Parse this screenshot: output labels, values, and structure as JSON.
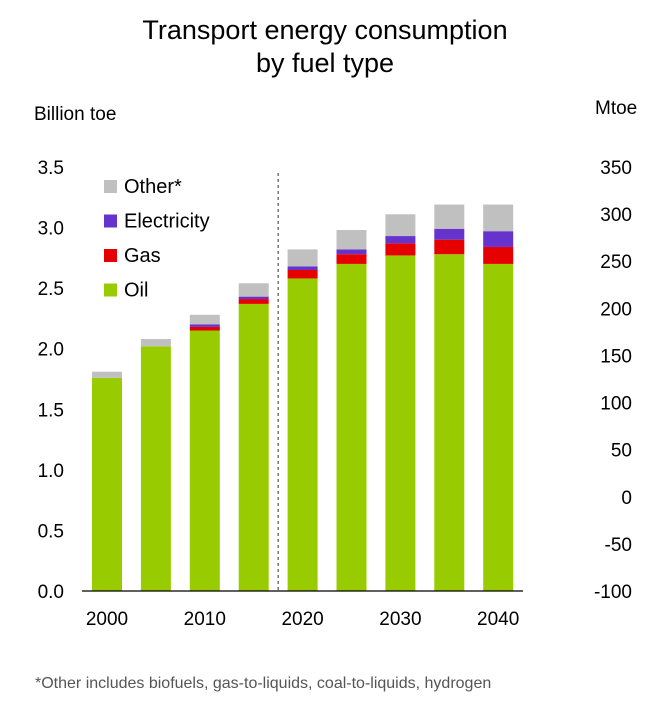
{
  "chart_data": {
    "type": "bar",
    "stacked": true,
    "title_lines": [
      "Transport energy consumption",
      "by fuel type"
    ],
    "ylabel_left": "Billion toe",
    "ylabel_right": "Mtoe",
    "ylim_left": [
      0,
      3.5
    ],
    "yticks_left": [
      "0.0",
      "0.5",
      "1.0",
      "1.5",
      "2.0",
      "2.5",
      "3.0",
      "3.5"
    ],
    "ylim_right": [
      -100,
      350
    ],
    "yticks_right": [
      "-100",
      "-50",
      "0",
      "50",
      "100",
      "150",
      "200",
      "250",
      "300",
      "350"
    ],
    "categories": [
      "2000",
      "2005",
      "2010",
      "2016",
      "2020",
      "2025",
      "2030",
      "2035",
      "2040"
    ],
    "xtick_labels": [
      "2000",
      "",
      "2010",
      "",
      "2020",
      "",
      "2030",
      "",
      "2040"
    ],
    "divider_after_category": "2016",
    "series": [
      {
        "name": "Oil",
        "color": "#99cc00",
        "values": [
          1.76,
          2.02,
          2.15,
          2.37,
          2.58,
          2.7,
          2.77,
          2.78,
          2.7
        ]
      },
      {
        "name": "Gas",
        "color": "#e60000",
        "values": [
          0.0,
          0.0,
          0.03,
          0.04,
          0.07,
          0.08,
          0.1,
          0.12,
          0.14
        ]
      },
      {
        "name": "Electricity",
        "color": "#6633cc",
        "values": [
          0.0,
          0.0,
          0.02,
          0.02,
          0.03,
          0.04,
          0.06,
          0.09,
          0.13
        ]
      },
      {
        "name": "Other*",
        "color": "#c0c0c0",
        "values": [
          0.05,
          0.06,
          0.08,
          0.11,
          0.14,
          0.16,
          0.18,
          0.2,
          0.22
        ]
      }
    ],
    "legend_order": [
      "Other*",
      "Electricity",
      "Gas",
      "Oil"
    ],
    "legend_position": "top-left",
    "grid": false
  },
  "footnote": "*Other includes biofuels, gas-to-liquids, coal-to-liquids, hydrogen"
}
